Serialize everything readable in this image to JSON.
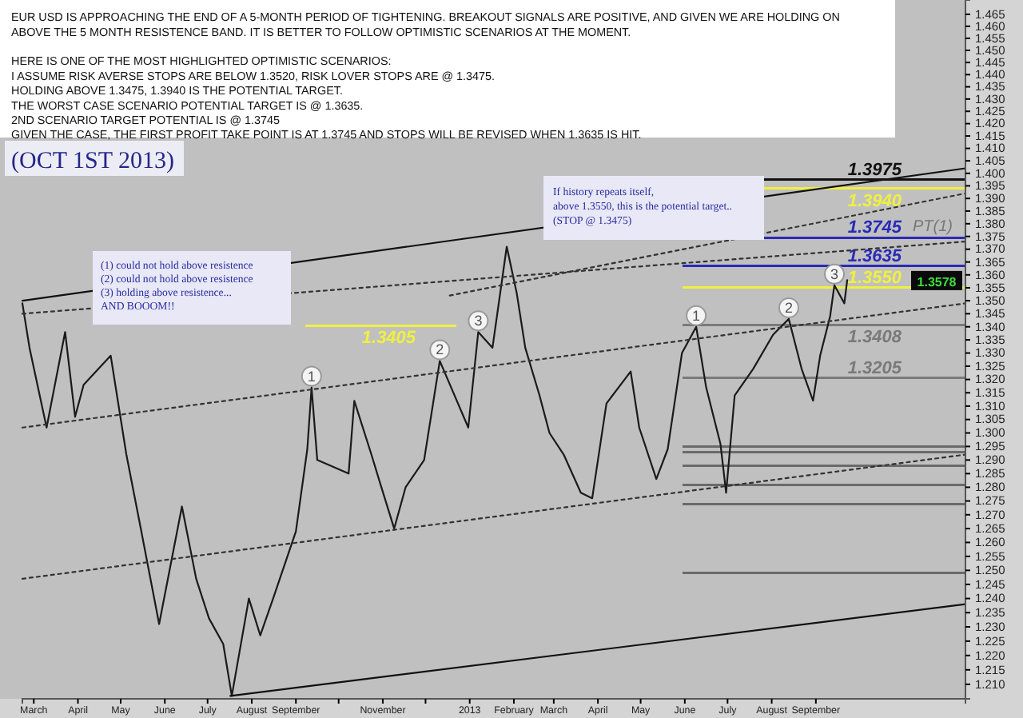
{
  "chart_data": {
    "type": "line",
    "log": "y",
    "xlim": [
      "2012-02-22",
      "2013-12-15"
    ],
    "ylim": [
      1.205,
      1.471
    ],
    "xticks": [
      {
        "value": "2012-03-01",
        "label": "March"
      },
      {
        "value": "2012-04-01",
        "label": "April"
      },
      {
        "value": "2012-05-01",
        "label": "May"
      },
      {
        "value": "2012-06-01",
        "label": "June"
      },
      {
        "value": "2012-07-01",
        "label": "July"
      },
      {
        "value": "2012-08-01",
        "label": "August"
      },
      {
        "value": "2012-09-01",
        "label": "September"
      },
      {
        "value": "2012-10-01",
        "label": null
      },
      {
        "value": "2012-11-01",
        "label": "November"
      },
      {
        "value": "2012-12-01",
        "label": null
      },
      {
        "value": "2013-01-01",
        "label": "2013"
      },
      {
        "value": "2013-02-01",
        "label": "February"
      },
      {
        "value": "2013-03-01",
        "label": "March"
      },
      {
        "value": "2013-04-01",
        "label": "April"
      },
      {
        "value": "2013-05-01",
        "label": "May"
      },
      {
        "value": "2013-06-01",
        "label": "June"
      },
      {
        "value": "2013-07-01",
        "label": "July"
      },
      {
        "value": "2013-08-01",
        "label": "August"
      },
      {
        "value": "2013-09-01",
        "label": "September"
      }
    ],
    "yticks": [
      {
        "value": 1.21,
        "label": "1.210"
      },
      1.215,
      {
        "value": 1.22,
        "label": "1.220"
      },
      1.225,
      {
        "value": 1.23,
        "label": "1.230"
      },
      1.235,
      {
        "value": 1.24,
        "label": "1.240"
      },
      1.245,
      {
        "value": 1.25,
        "label": "1.250"
      },
      1.255,
      {
        "value": 1.26,
        "label": "1.260"
      },
      1.265,
      {
        "value": 1.27,
        "label": "1.270"
      },
      1.275,
      {
        "value": 1.28,
        "label": "1.280"
      },
      1.285,
      {
        "value": 1.29,
        "label": "1.290"
      },
      1.295,
      {
        "value": 1.3,
        "label": "1.300"
      },
      1.305,
      {
        "value": 1.31,
        "label": "1.310"
      },
      1.315,
      {
        "value": 1.32,
        "label": "1.320"
      },
      1.325,
      {
        "value": 1.33,
        "label": "1.330"
      },
      1.335,
      {
        "value": 1.34,
        "label": "1.340"
      },
      1.345,
      {
        "value": 1.35,
        "label": "1.350"
      },
      1.355,
      {
        "value": 1.36,
        "label": "1.360"
      },
      1.365,
      {
        "value": 1.37,
        "label": "1.370"
      },
      1.375,
      {
        "value": 1.38,
        "label": "1.380"
      },
      1.385,
      {
        "value": 1.39,
        "label": "1.390"
      },
      1.395,
      {
        "value": 1.4,
        "label": "1.400"
      },
      1.405,
      {
        "value": 1.41,
        "label": "1.410"
      },
      1.415,
      {
        "value": 1.42,
        "label": "1.420"
      },
      1.425,
      {
        "value": 1.43,
        "label": "1.430"
      },
      1.435,
      {
        "value": 1.44,
        "label": "1.440"
      },
      1.445,
      {
        "value": 1.45,
        "label": "1.450"
      },
      1.455,
      {
        "value": 1.46,
        "label": "1.460"
      },
      1.465
    ],
    "series": [
      {
        "color": "#1a1a1a",
        "line_style": "solid",
        "x": [
          "2012-02-22",
          "2012-02-27",
          "2012-03-10",
          "2012-03-23",
          "2012-03-30",
          "2012-04-05",
          "2012-04-24",
          "2012-04-29",
          "2012-05-05",
          "2012-05-14",
          "2012-05-28",
          "2012-06-13",
          "2012-06-23",
          "2012-07-02",
          "2012-07-12",
          "2012-07-18",
          "2012-07-30",
          "2012-08-07",
          "2012-08-16",
          "2012-09-01",
          "2012-09-09",
          "2012-09-12",
          "2012-09-16",
          "2012-10-08",
          "2012-10-12",
          "2012-10-24",
          "2012-10-31",
          "2012-11-09",
          "2012-11-17",
          "2012-11-30",
          "2012-12-11",
          "2012-12-31",
          "2013-01-07",
          "2013-01-17",
          "2013-01-27",
          "2013-02-03",
          "2013-02-09",
          "2013-02-19",
          "2013-02-26",
          "2013-03-08",
          "2013-03-20",
          "2013-03-28",
          "2013-04-07",
          "2013-04-24",
          "2013-04-30",
          "2013-05-12",
          "2013-05-20",
          "2013-05-30",
          "2013-06-09",
          "2013-06-16",
          "2013-06-26",
          "2013-06-30",
          "2013-07-06",
          "2013-07-19",
          "2013-08-02",
          "2013-08-13",
          "2013-08-22",
          "2013-08-30",
          "2013-09-04",
          "2013-09-11",
          "2013-09-14",
          "2013-09-21",
          "2013-09-23"
        ],
        "values": [
          1.349,
          1.332,
          1.302,
          1.338,
          1.306,
          1.318,
          1.329,
          1.312,
          1.292,
          1.268,
          1.231,
          1.273,
          1.247,
          1.233,
          1.224,
          1.206,
          1.24,
          1.227,
          1.24,
          1.264,
          1.294,
          1.317,
          1.29,
          1.285,
          1.312,
          1.292,
          1.28,
          1.265,
          1.28,
          1.29,
          1.327,
          1.302,
          1.338,
          1.332,
          1.371,
          1.353,
          1.332,
          1.314,
          1.3,
          1.292,
          1.278,
          1.276,
          1.311,
          1.323,
          1.302,
          1.283,
          1.294,
          1.33,
          1.34,
          1.317,
          1.296,
          1.278,
          1.314,
          1.324,
          1.337,
          1.343,
          1.324,
          1.312,
          1.329,
          1.344,
          1.356,
          1.349,
          1.358
        ]
      },
      {
        "color": "#111111",
        "line_style": "solid",
        "x": [
          "2012-02-22",
          "2013-12-15"
        ],
        "values": [
          1.35,
          1.402
        ]
      },
      {
        "color": "#111111",
        "line_style": "solid",
        "x": [
          "2012-07-17",
          "2013-12-15"
        ],
        "values": [
          1.206,
          1.238
        ]
      },
      {
        "color": "#333333",
        "line_style": "dotted",
        "x": [
          "2012-02-22",
          "2013-12-15"
        ],
        "values": [
          1.345,
          1.373
        ]
      },
      {
        "color": "#333333",
        "line_style": "dotted",
        "x": [
          "2012-02-22",
          "2013-12-15"
        ],
        "values": [
          1.302,
          1.349
        ]
      },
      {
        "color": "#333333",
        "line_style": "dotted",
        "x": [
          "2012-02-22",
          "2013-12-15"
        ],
        "values": [
          1.247,
          1.292
        ]
      },
      {
        "color": "#333333",
        "line_style": "dotted",
        "x": [
          "2012-12-18",
          "2013-12-15"
        ],
        "values": [
          1.352,
          1.392
        ]
      }
    ],
    "ref_lines": [
      {
        "axis": "y",
        "value": 1.3405,
        "label": "1.3405",
        "color": "#f0f040"
      },
      {
        "axis": "y",
        "value": 1.3975,
        "label": "1.3975",
        "color": "#111111"
      },
      {
        "axis": "y",
        "value": 1.394,
        "label": "1.3940",
        "color": "#f0f040"
      },
      {
        "axis": "y",
        "value": 1.3745,
        "label": "1.3745",
        "color": "#2a2ab8"
      },
      {
        "axis": "y",
        "value": 1.3635,
        "label": "1.3635",
        "color": "#2a2ab8"
      },
      {
        "axis": "y",
        "value": 1.355,
        "label": "1.3550",
        "color": "#f0f040"
      },
      {
        "axis": "y",
        "value": 1.3408,
        "label": "1.3408",
        "color": "#7a7a7a"
      },
      {
        "axis": "y",
        "value": 1.3205,
        "label": "1.3205",
        "color": "#7a7a7a"
      },
      {
        "axis": "y",
        "value": 1.295,
        "label": null,
        "color": "#6a6a6a"
      },
      {
        "axis": "y",
        "value": 1.293,
        "label": null,
        "color": "#6a6a6a"
      },
      {
        "axis": "y",
        "value": 1.288,
        "label": null,
        "color": "#6a6a6a"
      },
      {
        "axis": "y",
        "value": 1.281,
        "label": null,
        "color": "#6a6a6a"
      },
      {
        "axis": "y",
        "value": 1.274,
        "label": null,
        "color": "#6a6a6a"
      },
      {
        "axis": "y",
        "value": 1.249,
        "label": null,
        "color": "#6a6a6a"
      }
    ],
    "annotations": [
      "EUR USD IS APPROACHING THE END OF A 5-MONTH PERIOD OF TIGHTENING. BREAKOUT SIGNALS ARE POSITIVE, AND GIVEN WE ARE HOLDING ON\nABOVE THE 5 MONTH RESISTENCE BAND. IT IS BETTER TO FOLLOW OPTIMISTIC SCENARIOS AT THE MOMENT.\n\nHERE IS ONE OF THE MOST HIGHLIGHTED OPTIMISTIC SCENARIOS:\nI ASSUME RISK AVERSE STOPS ARE BELOW 1.3520, RISK LOVER STOPS ARE @ 1.3475.\nHOLDING ABOVE 1.3475, 1.3940 IS THE POTENTIAL TARGET.\nTHE WORST CASE SCENARIO POTENTIAL TARGET IS  @ 1.3635.\n2ND SCENARIO TARGET POTENTIAL IS @ 1.3745\nGIVEN THE CASE, THE FIRST PROFIT TAKE POINT IS AT 1.3745 AND STOPS WILL BE REVISED WHEN 1.3635 IS HIT.",
      "(OCT 1ST 2013)",
      "(1) could not hold above resistence\n(2) could not hold above resistence\n(3) holding above resistence...\nAND BOOOM!!",
      "If history repeats itself,\nabove 1.3550, this is the potential target..\n(STOP @ 1.3475)",
      {
        "text": "1",
        "x": "2012-09-12",
        "y": 1.317
      },
      {
        "text": "2",
        "x": "2012-12-11",
        "y": 1.327
      },
      {
        "text": "3",
        "x": "2013-01-07",
        "y": 1.338
      },
      {
        "text": "1",
        "x": "2013-06-09",
        "y": 1.34
      },
      {
        "text": "2",
        "x": "2013-08-13",
        "y": 1.343
      },
      {
        "text": "3",
        "x": "2013-09-14",
        "y": 1.356
      },
      {
        "text": "PT(1)",
        "x": "2013-11-08",
        "y": 1.3745
      },
      {
        "text": "1.3578",
        "x": "2013-12-15",
        "y": 1.3578
      }
    ],
    "grid": false,
    "marker": "none"
  }
}
